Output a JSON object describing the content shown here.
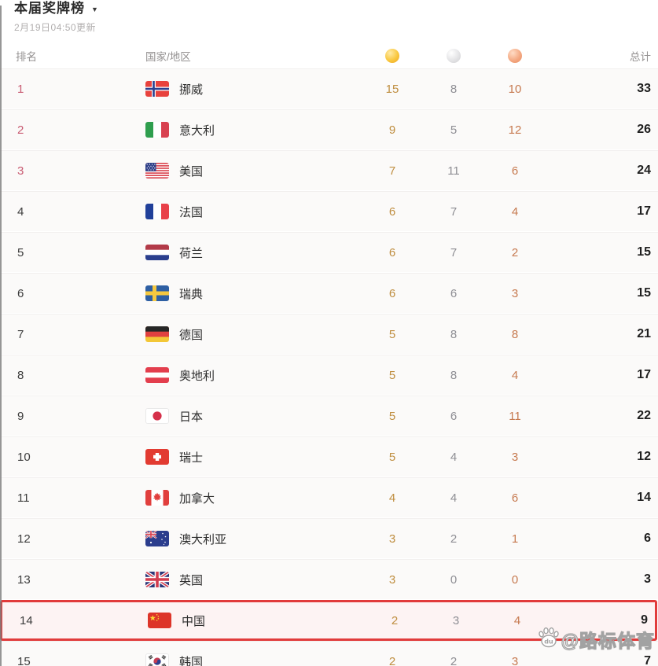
{
  "header": {
    "title": "本届奖牌榜",
    "dropdown_icon": "▼",
    "updated": "2月19日04:50更新"
  },
  "columns": {
    "rank": "排名",
    "country": "国家/地区",
    "gold_icon": "gold-medal-icon",
    "silver_icon": "silver-medal-icon",
    "bronze_icon": "bronze-medal-icon",
    "total": "总计"
  },
  "rows": [
    {
      "rank": "1",
      "country": "挪威",
      "flag": "no",
      "gold": "15",
      "silver": "8",
      "bronze": "10",
      "total": "33",
      "top3": true,
      "highlighted": false
    },
    {
      "rank": "2",
      "country": "意大利",
      "flag": "it",
      "gold": "9",
      "silver": "5",
      "bronze": "12",
      "total": "26",
      "top3": true,
      "highlighted": false
    },
    {
      "rank": "3",
      "country": "美国",
      "flag": "us",
      "gold": "7",
      "silver": "11",
      "bronze": "6",
      "total": "24",
      "top3": true,
      "highlighted": false
    },
    {
      "rank": "4",
      "country": "法国",
      "flag": "fr",
      "gold": "6",
      "silver": "7",
      "bronze": "4",
      "total": "17",
      "top3": false,
      "highlighted": false
    },
    {
      "rank": "5",
      "country": "荷兰",
      "flag": "nl",
      "gold": "6",
      "silver": "7",
      "bronze": "2",
      "total": "15",
      "top3": false,
      "highlighted": false
    },
    {
      "rank": "6",
      "country": "瑞典",
      "flag": "se",
      "gold": "6",
      "silver": "6",
      "bronze": "3",
      "total": "15",
      "top3": false,
      "highlighted": false
    },
    {
      "rank": "7",
      "country": "德国",
      "flag": "de",
      "gold": "5",
      "silver": "8",
      "bronze": "8",
      "total": "21",
      "top3": false,
      "highlighted": false
    },
    {
      "rank": "8",
      "country": "奥地利",
      "flag": "at",
      "gold": "5",
      "silver": "8",
      "bronze": "4",
      "total": "17",
      "top3": false,
      "highlighted": false
    },
    {
      "rank": "9",
      "country": "日本",
      "flag": "jp",
      "gold": "5",
      "silver": "6",
      "bronze": "11",
      "total": "22",
      "top3": false,
      "highlighted": false
    },
    {
      "rank": "10",
      "country": "瑞士",
      "flag": "ch",
      "gold": "5",
      "silver": "4",
      "bronze": "3",
      "total": "12",
      "top3": false,
      "highlighted": false
    },
    {
      "rank": "11",
      "country": "加拿大",
      "flag": "ca",
      "gold": "4",
      "silver": "4",
      "bronze": "6",
      "total": "14",
      "top3": false,
      "highlighted": false
    },
    {
      "rank": "12",
      "country": "澳大利亚",
      "flag": "au",
      "gold": "3",
      "silver": "2",
      "bronze": "1",
      "total": "6",
      "top3": false,
      "highlighted": false
    },
    {
      "rank": "13",
      "country": "英国",
      "flag": "gb",
      "gold": "3",
      "silver": "0",
      "bronze": "0",
      "total": "3",
      "top3": false,
      "highlighted": false
    },
    {
      "rank": "14",
      "country": "中国",
      "flag": "cn",
      "gold": "2",
      "silver": "3",
      "bronze": "4",
      "total": "9",
      "top3": false,
      "highlighted": true
    },
    {
      "rank": "15",
      "country": "韩国",
      "flag": "kr",
      "gold": "2",
      "silver": "2",
      "bronze": "3",
      "total": "7",
      "top3": false,
      "highlighted": false
    }
  ],
  "watermark": {
    "text": "@路标体育",
    "icon": "baidu-paw-icon"
  },
  "colors": {
    "highlight_border": "#e13b3b",
    "highlight_bg": "#fdf3f3",
    "rank_top3": "#c95c73",
    "gold_text": "#bf8e40",
    "silver_text": "#8e8e94",
    "bronze_text": "#c6794f"
  }
}
